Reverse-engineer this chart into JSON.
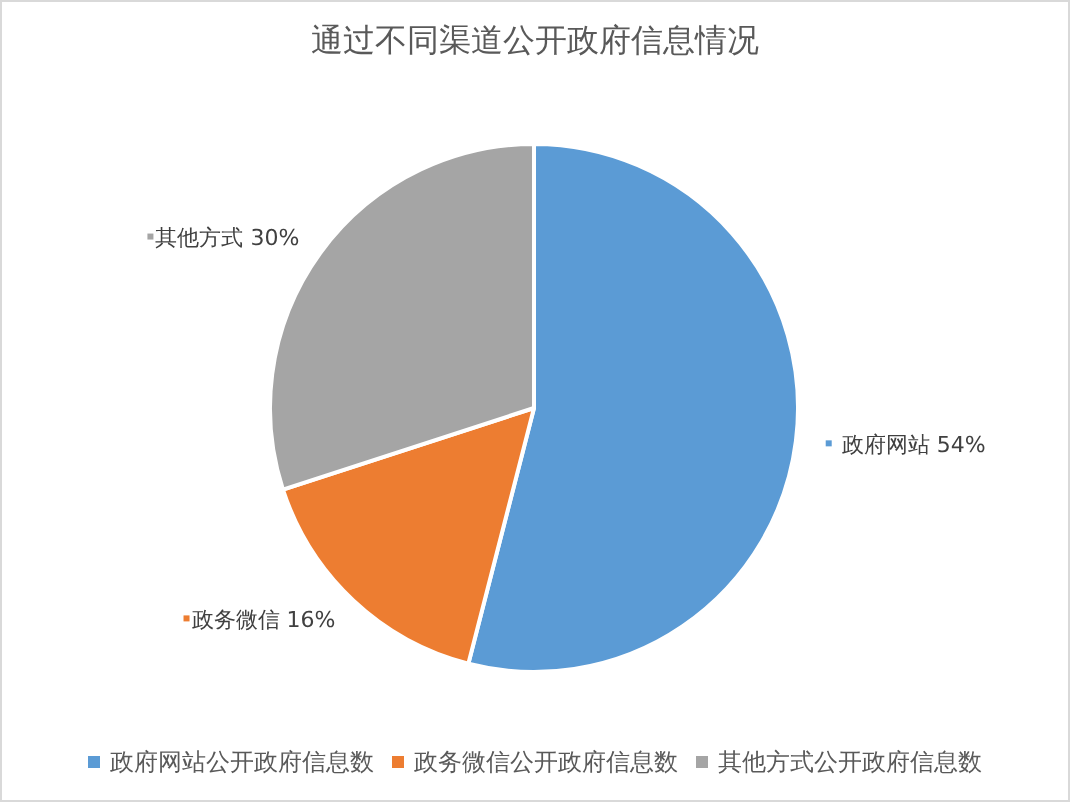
{
  "chart_data": {
    "type": "pie",
    "title": "通过不同渠道公开政府信息情况",
    "categories": [
      "政府网站公开政府信息数",
      "政务微信公开政府信息数",
      "其他方式公开政府信息数"
    ],
    "values": [
      54,
      16,
      30
    ],
    "colors": [
      "#5b9bd5",
      "#ed7d31",
      "#a5a5a5"
    ],
    "value_labels": [
      "政府网站 54%",
      "政务微信 16%",
      "其他方式 30%"
    ],
    "legend": "bottom"
  }
}
